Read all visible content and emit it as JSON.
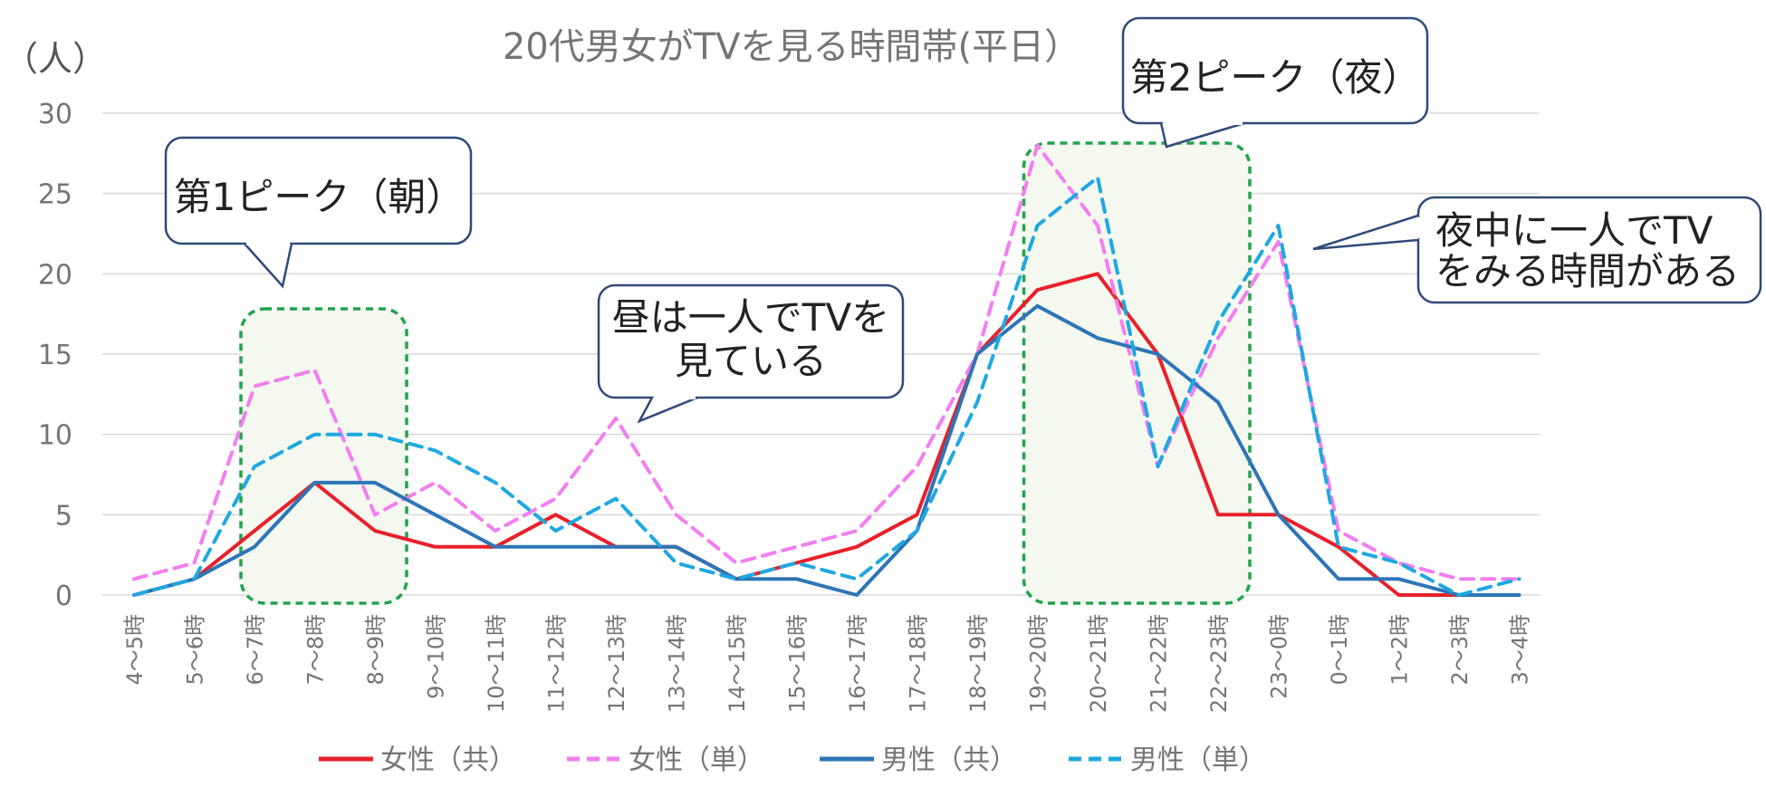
{
  "chart_data": {
    "type": "line",
    "title": "20代男女がTVを見る時間帯(平日）",
    "ylabel": "（人）",
    "ylim": [
      0,
      30
    ],
    "yticks": [
      "0",
      "5",
      "10",
      "15",
      "20",
      "25",
      "30"
    ],
    "grid": true,
    "legend_position": "bottom",
    "categories": [
      "4～5時",
      "5～6時",
      "6～7時",
      "7～8時",
      "8～9時",
      "9～10時",
      "10～11時",
      "11～12時",
      "12～13時",
      "13～14時",
      "14～15時",
      "15～16時",
      "16～17時",
      "17～18時",
      "18～19時",
      "19～20時",
      "20～21時",
      "21～22時",
      "22～23時",
      "23～0時",
      "0～1時",
      "1～2時",
      "2～3時",
      "3～4時"
    ],
    "series": [
      {
        "name": "女性（共）",
        "color": "#e8202a",
        "dash": false,
        "values": [
          0,
          1,
          4,
          7,
          4,
          3,
          3,
          5,
          3,
          3,
          1,
          2,
          3,
          5,
          15,
          19,
          20,
          15,
          5,
          5,
          3,
          0,
          0,
          0
        ]
      },
      {
        "name": "女性（単）",
        "color": "#f27ef0",
        "dash": true,
        "values": [
          1,
          2,
          13,
          14,
          5,
          7,
          4,
          6,
          11,
          5,
          2,
          3,
          4,
          8,
          15,
          28,
          23,
          8,
          16,
          22,
          4,
          2,
          1,
          1
        ]
      },
      {
        "name": "男性（共）",
        "color": "#2e75b6",
        "dash": false,
        "values": [
          0,
          1,
          3,
          7,
          7,
          5,
          3,
          3,
          3,
          3,
          1,
          1,
          0,
          4,
          15,
          18,
          16,
          15,
          12,
          5,
          1,
          1,
          0,
          0
        ]
      },
      {
        "name": "男性（単）",
        "color": "#1fa8e0",
        "dash": true,
        "values": [
          0,
          1,
          8,
          10,
          10,
          9,
          7,
          4,
          6,
          2,
          1,
          2,
          1,
          4,
          12,
          23,
          26,
          8,
          17,
          23,
          3,
          2,
          0,
          1
        ]
      }
    ],
    "highlights": [
      {
        "from": "6～7時",
        "to": "8～9時",
        "color": "#21a34b"
      },
      {
        "from": "19～20時",
        "to": "22～23時",
        "color": "#21a34b"
      }
    ],
    "annotations": [
      {
        "lines": [
          "第1ピーク（朝）"
        ]
      },
      {
        "lines": [
          "第2ピーク（夜）"
        ]
      },
      {
        "lines": [
          "昼は一人でTVを",
          "見ている"
        ]
      },
      {
        "lines": [
          "夜中に一人でTV",
          "をみる時間がある"
        ]
      }
    ]
  }
}
